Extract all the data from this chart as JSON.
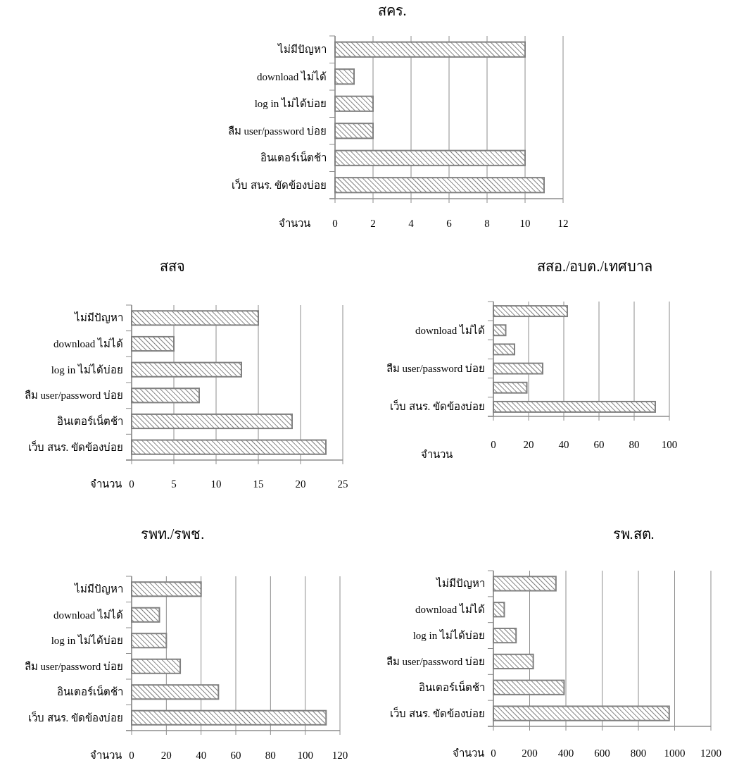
{
  "chart_data": [
    {
      "type": "bar",
      "orientation": "horizontal",
      "title": "สคร.",
      "xlabel": "จำนวน",
      "categories": [
        "ไม่มีปัญหา",
        "download ไม่ได้",
        "log in ไม่ได้บ่อย",
        "ลืม user/password บ่อย",
        "อินเตอร์เน็ตช้า",
        "เว็บ สนร. ขัดข้องบ่อย"
      ],
      "values": [
        10,
        1,
        2,
        2,
        10,
        11
      ],
      "color": "#808080",
      "xlim": [
        0,
        12
      ],
      "xticks": [
        0,
        2,
        4,
        6,
        8,
        10,
        12
      ],
      "grid": "x"
    },
    {
      "type": "bar",
      "orientation": "horizontal",
      "title": "สสจ",
      "xlabel": "จำนวน",
      "categories": [
        "ไม่มีปัญหา",
        "download ไม่ได้",
        "log in ไม่ได้บ่อย",
        "ลืม user/password บ่อย",
        "อินเตอร์เน็ตช้า",
        "เว็บ สนร. ขัดข้องบ่อย"
      ],
      "values": [
        15,
        5,
        13,
        8,
        19,
        23
      ],
      "color": "#808080",
      "xlim": [
        0,
        25
      ],
      "xticks": [
        0,
        5,
        10,
        15,
        20,
        25
      ],
      "grid": "x"
    },
    {
      "type": "bar",
      "orientation": "horizontal",
      "title": "สสอ./อบต./เทศบาล",
      "xlabel": "จำนวน",
      "categories": [
        null,
        "download ไม่ได้",
        null,
        "ลืม user/password บ่อย",
        null,
        "เว็บ สนร. ขัดข้องบ่อย"
      ],
      "values": [
        42,
        7,
        12,
        28,
        19,
        92
      ],
      "color": "#808080",
      "xlim": [
        0,
        100
      ],
      "xticks": [
        0,
        20,
        40,
        60,
        80,
        100
      ],
      "grid": "x"
    },
    {
      "type": "bar",
      "orientation": "horizontal",
      "title": "รพท./รพช.",
      "xlabel": "จำนวน",
      "categories": [
        "ไม่มีปัญหา",
        "download ไม่ได้",
        "log in ไม่ได้บ่อย",
        "ลืม user/password บ่อย",
        "อินเตอร์เน็ตช้า",
        "เว็บ สนร. ขัดข้องบ่อย"
      ],
      "values": [
        40,
        16,
        20,
        28,
        50,
        112
      ],
      "color": "#808080",
      "xlim": [
        0,
        120
      ],
      "xticks": [
        0,
        20,
        40,
        60,
        80,
        100,
        120
      ],
      "grid": "x"
    },
    {
      "type": "bar",
      "orientation": "horizontal",
      "title": "รพ.สต.",
      "xlabel": "จำนวน",
      "categories": [
        "ไม่มีปัญหา",
        "download ไม่ได้",
        "log in ไม่ได้บ่อย",
        "ลืม user/password บ่อย",
        "อินเตอร์เน็ตช้า",
        "เว็บ สนร. ขัดข้องบ่อย"
      ],
      "values": [
        345,
        60,
        125,
        220,
        390,
        970
      ],
      "color": "#808080",
      "xlim": [
        0,
        1200
      ],
      "xticks": [
        0,
        200,
        400,
        600,
        800,
        1000,
        1200
      ],
      "grid": "x"
    }
  ]
}
